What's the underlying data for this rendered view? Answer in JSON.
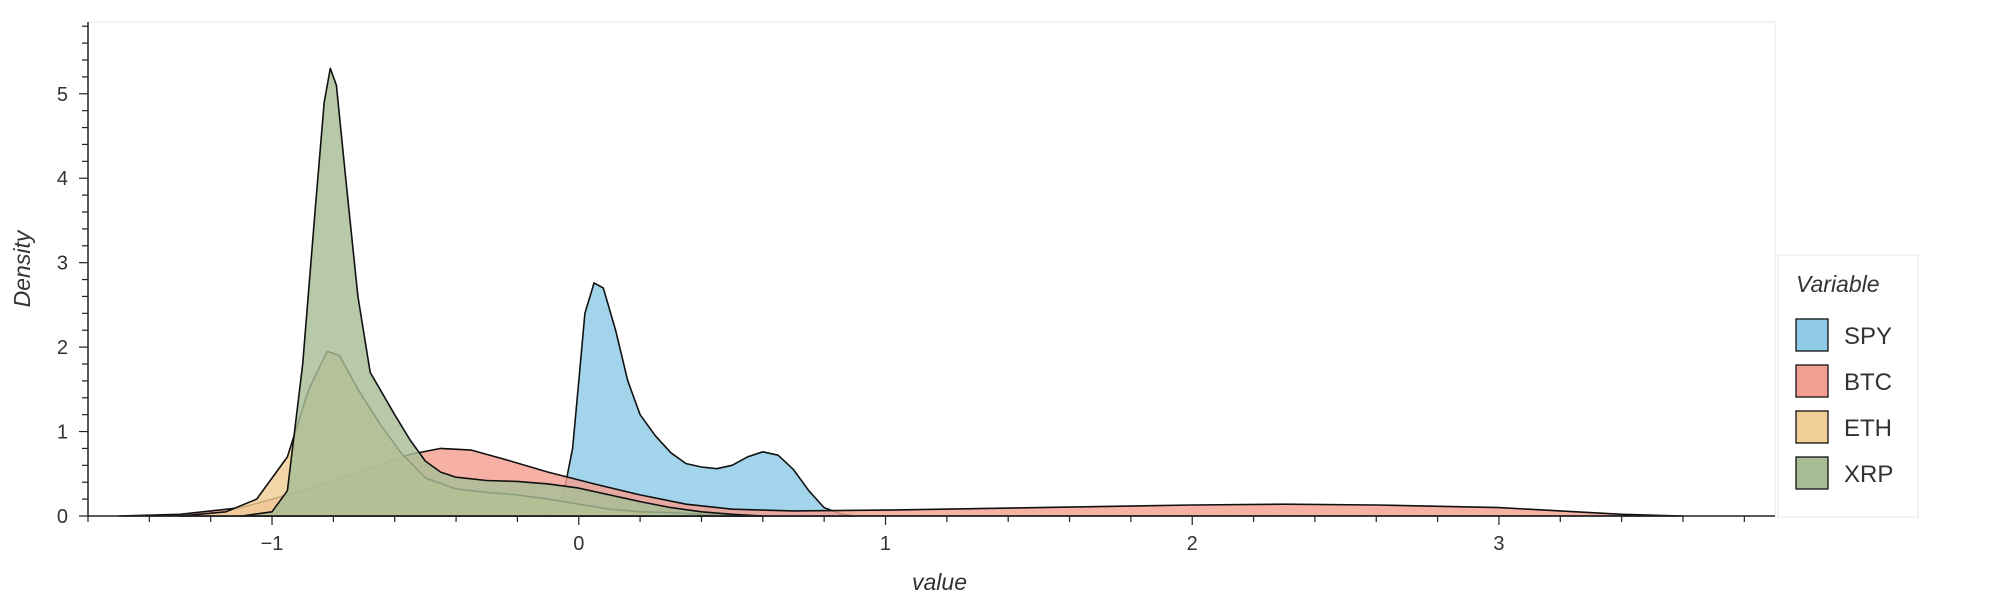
{
  "chart_data": {
    "type": "area",
    "title": "",
    "xlabel": "value",
    "ylabel": "Density",
    "xlim": [
      -1.6,
      3.9
    ],
    "ylim": [
      0,
      5.85
    ],
    "x_ticks": [
      -1,
      0,
      1,
      2,
      3
    ],
    "x_tick_labels": [
      "−1",
      "0",
      "1",
      "2",
      "3"
    ],
    "y_ticks": [
      0,
      1,
      2,
      3,
      4,
      5
    ],
    "y_tick_labels": [
      "0",
      "1",
      "2",
      "3",
      "4",
      "5"
    ],
    "grid": false,
    "legend": {
      "title": "Variable",
      "position": "right"
    },
    "series": [
      {
        "name": "SPY",
        "color": "#8ecae6",
        "points": [
          [
            -0.2,
            0
          ],
          [
            -0.1,
            0.02
          ],
          [
            -0.05,
            0.25
          ],
          [
            -0.02,
            0.8
          ],
          [
            0.0,
            1.6
          ],
          [
            0.02,
            2.4
          ],
          [
            0.05,
            2.76
          ],
          [
            0.08,
            2.7
          ],
          [
            0.12,
            2.2
          ],
          [
            0.16,
            1.6
          ],
          [
            0.2,
            1.2
          ],
          [
            0.25,
            0.95
          ],
          [
            0.3,
            0.75
          ],
          [
            0.35,
            0.62
          ],
          [
            0.4,
            0.58
          ],
          [
            0.45,
            0.56
          ],
          [
            0.5,
            0.6
          ],
          [
            0.55,
            0.7
          ],
          [
            0.6,
            0.76
          ],
          [
            0.65,
            0.72
          ],
          [
            0.7,
            0.55
          ],
          [
            0.75,
            0.3
          ],
          [
            0.8,
            0.1
          ],
          [
            0.85,
            0.03
          ],
          [
            0.9,
            0
          ]
        ]
      },
      {
        "name": "BTC",
        "color": "#f4a090",
        "points": [
          [
            -1.5,
            0
          ],
          [
            -1.3,
            0.02
          ],
          [
            -1.1,
            0.1
          ],
          [
            -0.9,
            0.3
          ],
          [
            -0.7,
            0.55
          ],
          [
            -0.55,
            0.73
          ],
          [
            -0.45,
            0.8
          ],
          [
            -0.35,
            0.78
          ],
          [
            -0.25,
            0.68
          ],
          [
            -0.1,
            0.52
          ],
          [
            0.05,
            0.38
          ],
          [
            0.2,
            0.25
          ],
          [
            0.35,
            0.14
          ],
          [
            0.5,
            0.08
          ],
          [
            0.7,
            0.06
          ],
          [
            1.0,
            0.07
          ],
          [
            1.5,
            0.1
          ],
          [
            2.0,
            0.13
          ],
          [
            2.3,
            0.14
          ],
          [
            2.6,
            0.13
          ],
          [
            3.0,
            0.1
          ],
          [
            3.2,
            0.06
          ],
          [
            3.4,
            0.02
          ],
          [
            3.6,
            0
          ]
        ]
      },
      {
        "name": "ETH",
        "color": "#f0ce95",
        "points": [
          [
            -1.3,
            0
          ],
          [
            -1.15,
            0.05
          ],
          [
            -1.05,
            0.2
          ],
          [
            -0.95,
            0.7
          ],
          [
            -0.88,
            1.5
          ],
          [
            -0.82,
            1.95
          ],
          [
            -0.78,
            1.9
          ],
          [
            -0.72,
            1.5
          ],
          [
            -0.65,
            1.1
          ],
          [
            -0.58,
            0.75
          ],
          [
            -0.5,
            0.45
          ],
          [
            -0.4,
            0.32
          ],
          [
            -0.3,
            0.28
          ],
          [
            -0.2,
            0.25
          ],
          [
            -0.1,
            0.2
          ],
          [
            0.0,
            0.14
          ],
          [
            0.1,
            0.08
          ],
          [
            0.2,
            0.05
          ],
          [
            0.3,
            0.04
          ],
          [
            0.45,
            0.01
          ],
          [
            0.55,
            0
          ]
        ]
      },
      {
        "name": "XRP",
        "color": "#a7bd96",
        "points": [
          [
            -1.1,
            0
          ],
          [
            -1.0,
            0.05
          ],
          [
            -0.95,
            0.3
          ],
          [
            -0.9,
            1.8
          ],
          [
            -0.86,
            3.6
          ],
          [
            -0.83,
            4.9
          ],
          [
            -0.81,
            5.3
          ],
          [
            -0.79,
            5.1
          ],
          [
            -0.76,
            4.0
          ],
          [
            -0.72,
            2.6
          ],
          [
            -0.68,
            1.7
          ],
          [
            -0.64,
            1.45
          ],
          [
            -0.6,
            1.2
          ],
          [
            -0.55,
            0.9
          ],
          [
            -0.5,
            0.65
          ],
          [
            -0.45,
            0.52
          ],
          [
            -0.4,
            0.46
          ],
          [
            -0.3,
            0.42
          ],
          [
            -0.2,
            0.41
          ],
          [
            -0.1,
            0.38
          ],
          [
            0.0,
            0.33
          ],
          [
            0.1,
            0.25
          ],
          [
            0.2,
            0.17
          ],
          [
            0.3,
            0.1
          ],
          [
            0.4,
            0.05
          ],
          [
            0.5,
            0.02
          ],
          [
            0.6,
            0
          ]
        ]
      }
    ]
  }
}
